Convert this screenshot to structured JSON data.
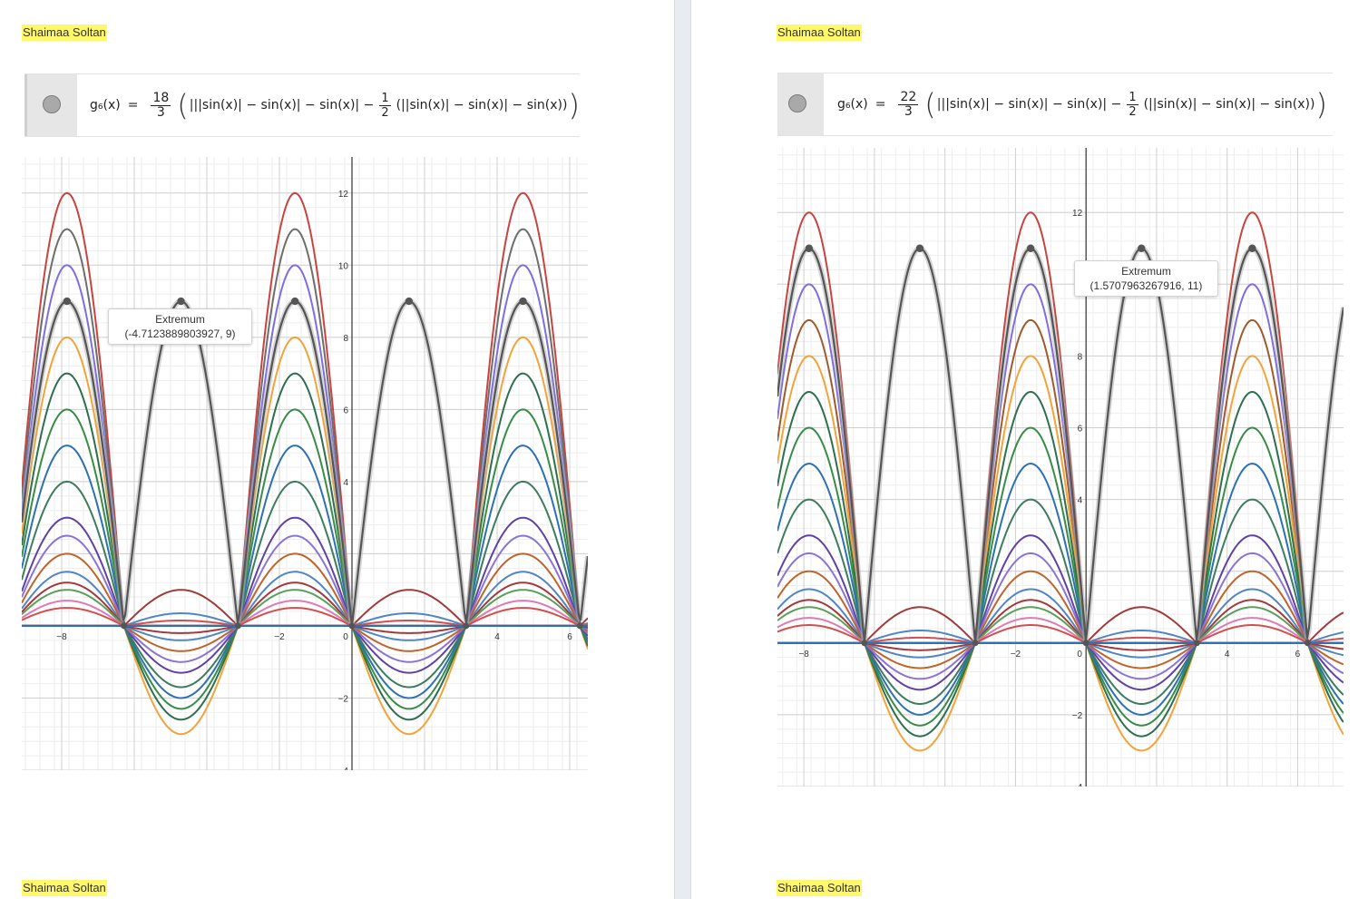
{
  "author_label": "Shaimaa Soltan",
  "left_panel": {
    "function_name": "g₆(x)",
    "equals": "=",
    "coefficient_num": "18",
    "coefficient_den": "3",
    "expr_a": "|||sin(x)| − sin(x)| − sin(x)| −",
    "half_num": "1",
    "half_den": "2",
    "expr_b": "(||sin(x)| − sin(x)| − sin(x))",
    "tooltip_title": "Extremum",
    "tooltip_value": "(-4.7123889803927, 9)",
    "x_ticks": [
      "−8",
      "−2",
      "0",
      "4",
      "6"
    ],
    "y_ticks": [
      "12",
      "10",
      "8",
      "6",
      "4",
      "−2",
      "−4"
    ]
  },
  "right_panel": {
    "function_name": "g₆(x)",
    "equals": "=",
    "coefficient_num": "22",
    "coefficient_den": "3",
    "expr_a": "|||sin(x)| − sin(x)| − sin(x)| −",
    "half_num": "1",
    "half_den": "2",
    "expr_b": "(||sin(x)| − sin(x)| − sin(x))",
    "tooltip_title": "Extremum",
    "tooltip_value": "(1.5707963267916, 11)",
    "x_ticks": [
      "−8",
      "−2",
      "0",
      "4",
      "6"
    ],
    "y_ticks": [
      "12",
      "8",
      "6",
      "4",
      "−2",
      "−4"
    ]
  },
  "left_chart": {
    "type": "line",
    "x_range": [
      -9.1,
      6.5
    ],
    "y_range": [
      -4,
      13
    ],
    "highlighted_amplitude": 9,
    "upper_amplitudes": [
      12,
      11,
      10,
      9,
      8,
      7,
      6,
      5,
      4,
      3,
      2.5,
      2,
      1.5,
      1.2,
      1,
      0.7,
      0.5
    ],
    "lower_amplitudes": [
      3,
      2.6,
      2.3,
      2,
      1.7,
      1.3,
      1,
      0.7,
      0.4,
      0.2
    ],
    "colors": [
      "#c74440",
      "#6e6e6e",
      "#7e6ee0",
      "#4e4e4e",
      "#f2a33a",
      "#2d6f4f",
      "#388c46",
      "#2d70b3",
      "#3e7c5d",
      "#6042a6",
      "#8a74d6",
      "#c0642a",
      "#4f86c6",
      "#a23a3a",
      "#5aa05a",
      "#e07ab0",
      "#d05050"
    ]
  },
  "right_chart": {
    "type": "line",
    "x_range": [
      -8.75,
      7.3
    ],
    "y_range": [
      -4,
      13.8
    ],
    "highlighted_amplitude": 11,
    "upper_amplitudes": [
      12,
      11,
      10,
      9,
      8,
      7,
      6,
      5,
      4,
      3,
      2.5,
      2,
      1.5,
      1.2,
      1,
      0.7,
      0.5
    ],
    "lower_amplitudes": [
      3,
      2.6,
      2.3,
      2,
      1.7,
      1.3,
      1,
      0.7,
      0.4,
      0.2
    ],
    "colors": [
      "#c74440",
      "#6e6e6e",
      "#7e6ee0",
      "#a05a2c",
      "#f2a33a",
      "#2d6f4f",
      "#388c46",
      "#2d70b3",
      "#3e7c5d",
      "#6042a6",
      "#8a74d6",
      "#c0642a",
      "#4f86c6",
      "#a23a3a",
      "#5aa05a",
      "#e07ab0",
      "#d05050"
    ]
  }
}
